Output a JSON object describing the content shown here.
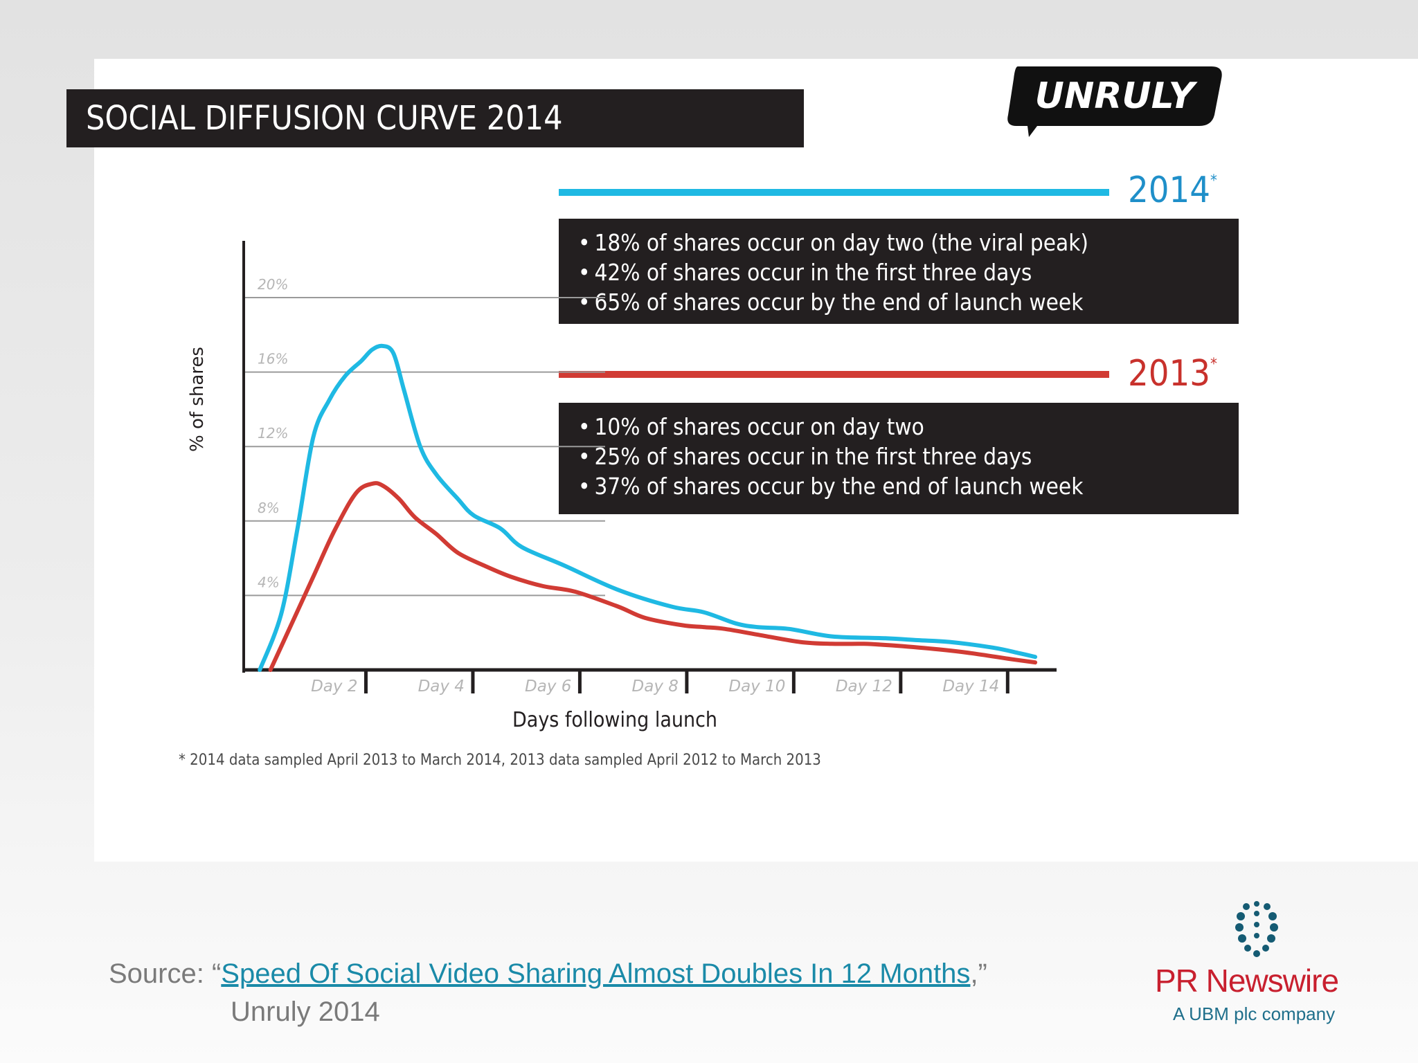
{
  "chart_data": {
    "type": "line",
    "title": "SOCIAL DIFFUSION CURVE 2014",
    "xlabel": "Days following launch",
    "ylabel": "% of shares",
    "ylim": [
      0,
      20
    ],
    "xlim": [
      0,
      15.2
    ],
    "y_ticks": [
      {
        "value": 4,
        "label": "4%"
      },
      {
        "value": 8,
        "label": "8%"
      },
      {
        "value": 12,
        "label": "12%"
      },
      {
        "value": 16,
        "label": "16%"
      },
      {
        "value": 20,
        "label": "20%"
      }
    ],
    "x_ticks": [
      {
        "value": 2,
        "label": "Day 2"
      },
      {
        "value": 4,
        "label": "Day 4"
      },
      {
        "value": 6,
        "label": "Day 6"
      },
      {
        "value": 8,
        "label": "Day 8"
      },
      {
        "value": 10,
        "label": "Day 10"
      },
      {
        "value": 12,
        "label": "Day 12"
      },
      {
        "value": 14,
        "label": "Day 14"
      }
    ],
    "grid": true,
    "series": [
      {
        "name": "2014",
        "color": "#1fb9e3",
        "x": [
          0.3,
          0.7,
          1.0,
          1.3,
          1.6,
          1.9,
          2.2,
          2.4,
          2.6,
          2.8,
          3.0,
          3.3,
          3.6,
          4.0,
          4.3,
          4.8,
          5.2,
          6.0,
          7.0,
          8.0,
          8.6,
          9.2,
          9.6,
          10.2,
          11.0,
          12.0,
          12.6,
          13.2,
          14.0,
          14.5,
          14.8
        ],
        "y": [
          0.0,
          3.0,
          7.5,
          12.5,
          14.5,
          15.8,
          16.6,
          17.2,
          17.4,
          17.0,
          15.0,
          12.0,
          10.5,
          9.2,
          8.3,
          7.6,
          6.6,
          5.6,
          4.3,
          3.4,
          3.1,
          2.5,
          2.3,
          2.2,
          1.8,
          1.7,
          1.6,
          1.5,
          1.2,
          0.9,
          0.7
        ]
      },
      {
        "name": "2013",
        "color": "#d13b34",
        "x": [
          0.5,
          0.9,
          1.3,
          1.7,
          2.1,
          2.4,
          2.6,
          2.9,
          3.2,
          3.6,
          4.0,
          4.5,
          5.0,
          5.6,
          6.2,
          7.0,
          7.5,
          8.2,
          8.6,
          9.0,
          9.6,
          10.4,
          11.0,
          11.6,
          12.2,
          13.0,
          13.6,
          14.3,
          14.8
        ],
        "y": [
          0.0,
          2.5,
          5.0,
          7.5,
          9.5,
          10.0,
          9.9,
          9.2,
          8.2,
          7.3,
          6.3,
          5.6,
          5.0,
          4.5,
          4.2,
          3.4,
          2.8,
          2.4,
          2.3,
          2.2,
          1.9,
          1.5,
          1.4,
          1.4,
          1.3,
          1.1,
          0.9,
          0.6,
          0.4
        ]
      }
    ],
    "annotations": [
      {
        "label": "2014",
        "marker": "*",
        "lines": [
          "18% of shares occur on day two (the viral peak)",
          "42% of shares occur in the first three days",
          "65% of shares occur by the end of launch week"
        ]
      },
      {
        "label": "2013",
        "marker": "*",
        "lines": [
          "10% of shares occur on day two",
          "25% of shares occur in the first three days",
          "37% of shares occur by the end of launch week"
        ]
      }
    ],
    "footnote": "* 2014 data sampled April 2013 to March 2014, 2013 data sampled April 2012 to March 2013"
  },
  "logo": {
    "text": "UNRULY"
  },
  "source": {
    "prefix": "Source:  “",
    "link_text": "Speed Of Social Video Sharing Almost Doubles In 12 Months",
    "suffix": ",”",
    "year_line": "Unruly 2014"
  },
  "publisher": {
    "name": "PR Newswire",
    "tagline": "A UBM plc company"
  }
}
